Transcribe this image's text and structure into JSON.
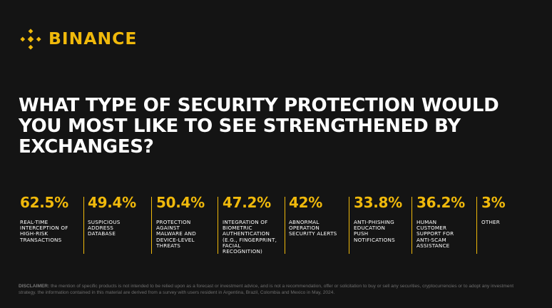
{
  "brand": {
    "name": "BINANCE",
    "logo_icon": "binance-diamond-logo",
    "accent_color": "#F0B90B",
    "background_color": "#141414"
  },
  "question": "WHAT TYPE OF SECURITY PROTECTION WOULD YOU MOST LIKE TO SEE STRENGTHENED BY EXCHANGES?",
  "stats": [
    {
      "value": "62.5%",
      "label": "REAL-TIME\nINTERCEPTION OF\nHIGH-RISK\nTRANSACTIONS"
    },
    {
      "value": "49.4%",
      "label": "SUSPICIOUS\nADDRESS\nDATABASE"
    },
    {
      "value": "50.4%",
      "label": "PROTECTION\nAGAINST\nMALWARE AND\nDEVICE-LEVEL\nTHREATS"
    },
    {
      "value": "47.2%",
      "label": "INTEGRATION OF\nBIOMETRIC\nAUTHENTICATION\n(E.G., FINGERPRINT,\nFACIAL\nRECOGNITION)"
    },
    {
      "value": "42%",
      "label": "ABNORMAL\nOPERATION\nSECURITY ALERTS"
    },
    {
      "value": "33.8%",
      "label": "ANTI-PHISHING\nEDUCATION\nPUSH\nNOTIFICATIONS"
    },
    {
      "value": "36.2%",
      "label": "HUMAN\nCUSTOMER\nSUPPORT FOR\nANTI-SCAM\nASSISTANCE"
    },
    {
      "value": "3%",
      "label": "OTHER"
    }
  ],
  "disclaimer": {
    "label": "DISCLAIMER:",
    "text": " the mention of specific products is not intended to be relied upon as a forecast or investment advice, and is not a recommendation, offer or solicitation to buy or sell any securities, cryptocurrencies or to adopt any investment strategy. the information contained in this material are derived from a survey with users resident in Argentina, Brazil, Colombia and Mexico in May, 2024."
  }
}
